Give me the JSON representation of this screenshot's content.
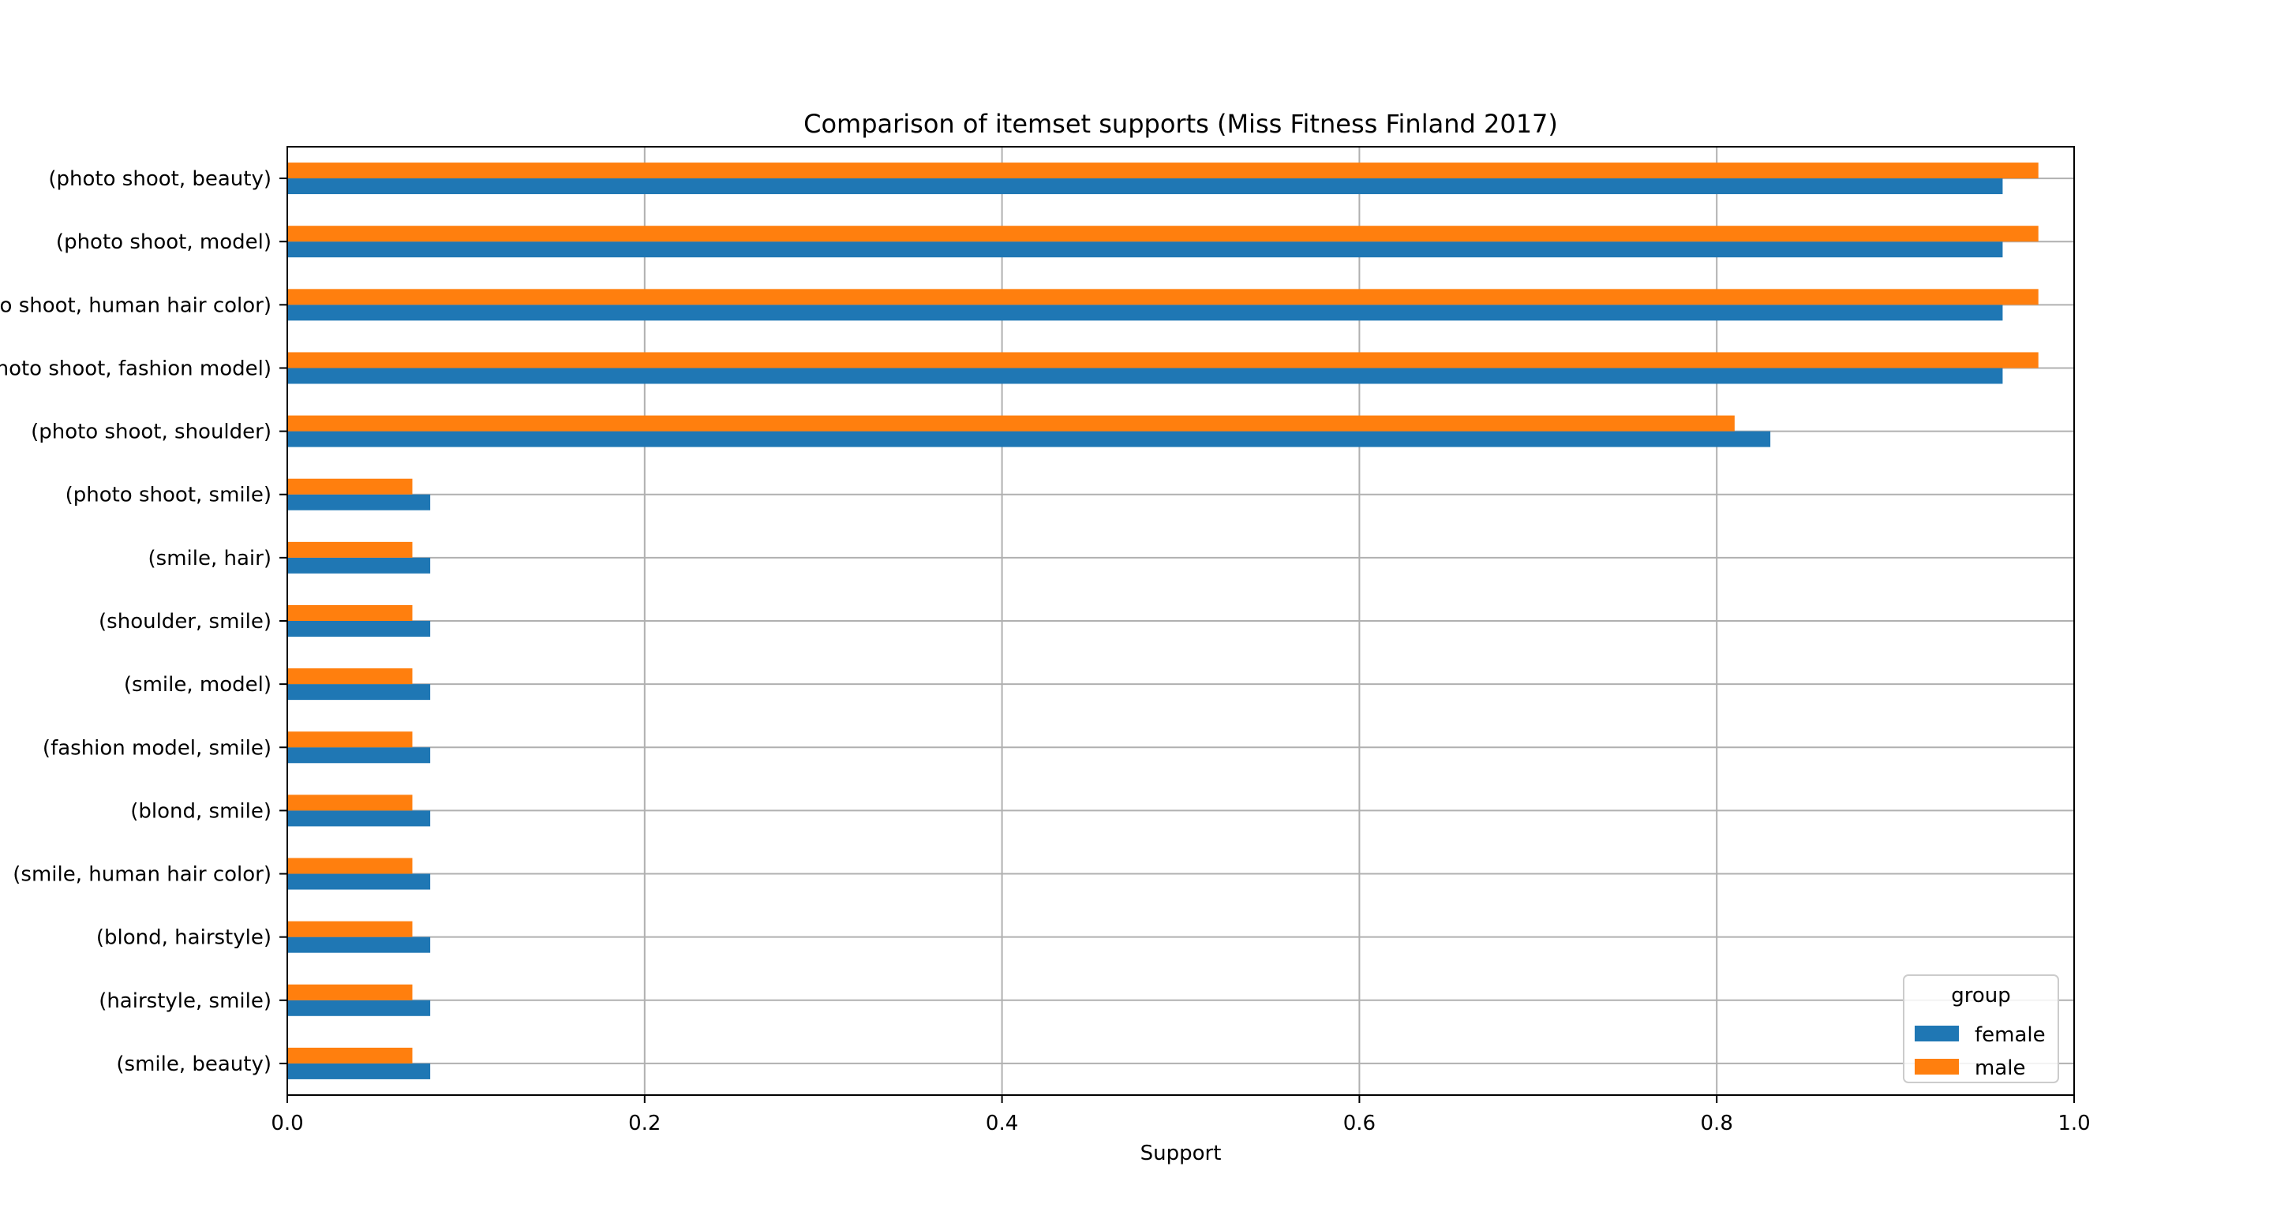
{
  "chart_data": {
    "type": "bar",
    "orientation": "horizontal",
    "title": "Comparison of itemset supports (Miss Fitness Finland 2017)",
    "xlabel": "Support",
    "ylabel": "",
    "xlim": [
      0.0,
      1.0
    ],
    "xticks": [
      "0.0",
      "0.2",
      "0.4",
      "0.6",
      "0.8",
      "1.0"
    ],
    "grid": true,
    "legend_title": "group",
    "legend_position": "lower-right",
    "categories": [
      "(photo shoot, beauty)",
      "(photo shoot, model)",
      "(photo shoot, human hair color)",
      "(photo shoot, fashion model)",
      "(photo shoot, shoulder)",
      "(photo shoot, smile)",
      "(smile, hair)",
      "(shoulder, smile)",
      "(smile, model)",
      "(fashion model, smile)",
      "(blond, smile)",
      "(smile, human hair color)",
      "(blond, hairstyle)",
      "(hairstyle, smile)",
      "(smile, beauty)"
    ],
    "series": [
      {
        "name": "female",
        "color": "#1f77b4",
        "values": [
          0.96,
          0.96,
          0.96,
          0.96,
          0.83,
          0.08,
          0.08,
          0.08,
          0.08,
          0.08,
          0.08,
          0.08,
          0.08,
          0.08,
          0.08
        ]
      },
      {
        "name": "male",
        "color": "#ff7f0e",
        "values": [
          0.98,
          0.98,
          0.98,
          0.98,
          0.81,
          0.07,
          0.07,
          0.07,
          0.07,
          0.07,
          0.07,
          0.07,
          0.07,
          0.07,
          0.07
        ]
      }
    ]
  }
}
